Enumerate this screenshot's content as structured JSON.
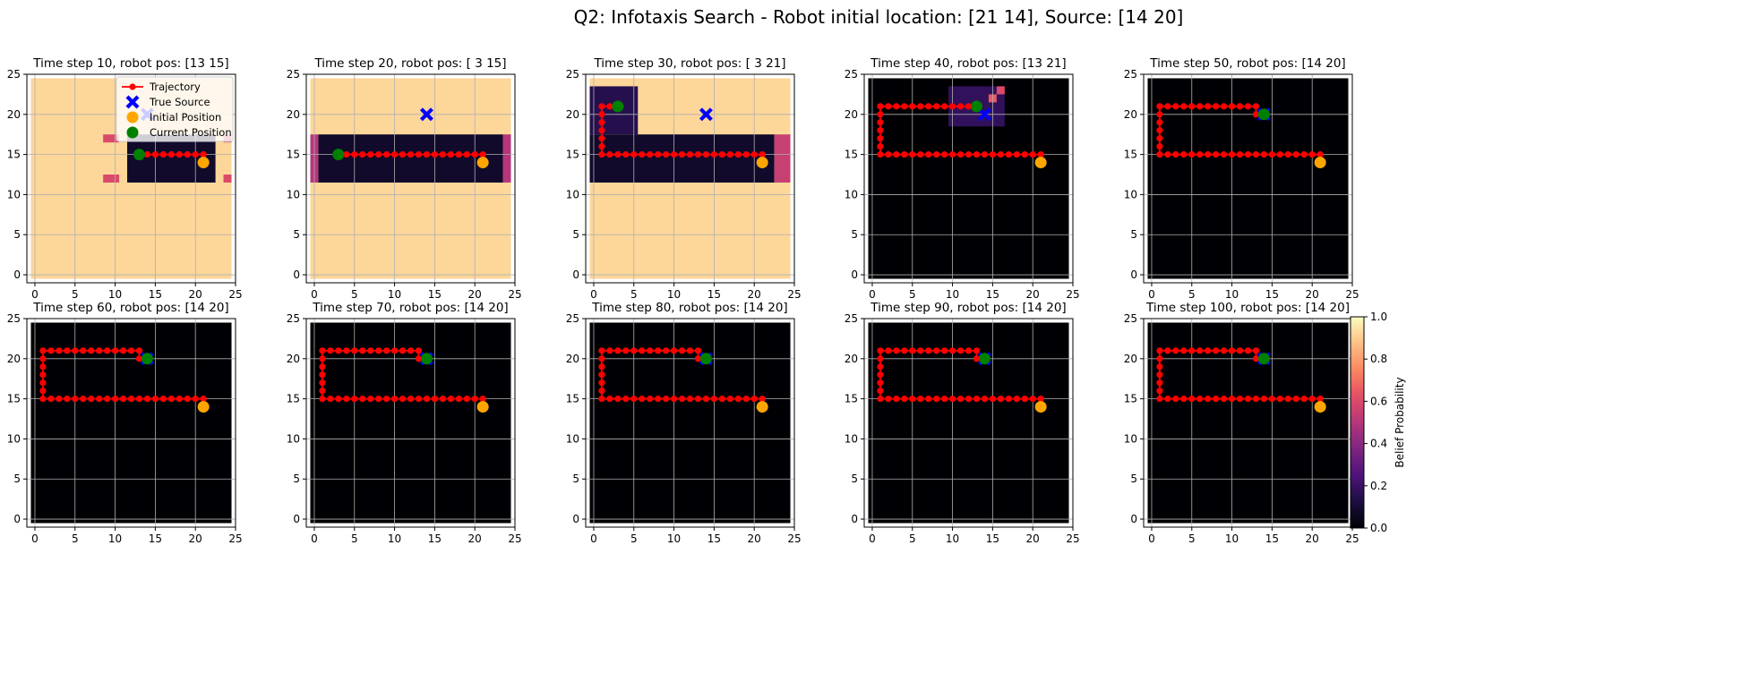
{
  "figure": {
    "suptitle": "Q2: Infotaxis Search - Robot initial location: [21 14], Source: [14 20]"
  },
  "colors": {
    "trajectory": "#ff0000",
    "true_source": "#0000ff",
    "initial_position": "#ffa500",
    "current_position": "#008000",
    "grid": "#b0b0b0",
    "colormap": "magma"
  },
  "icons": {
    "true_source": "x-marker-icon",
    "initial_position": "circle-marker-icon",
    "current_position": "circle-marker-icon",
    "trajectory": "line-with-dot-icon"
  },
  "chart_data": {
    "type": "heatmap",
    "grid_size": 25,
    "xlim": [
      -1,
      25
    ],
    "ylim": [
      -1,
      25
    ],
    "xticks": [
      "0",
      "5",
      "10",
      "15",
      "20",
      "25"
    ],
    "yticks": [
      "0",
      "5",
      "10",
      "15",
      "20",
      "25"
    ],
    "grid": true,
    "true_source": [
      14,
      20
    ],
    "initial_position": [
      21,
      14
    ],
    "legend": {
      "placement": "top-right (first panel)",
      "entries": [
        "Trajectory",
        "True Source",
        "Initial Position",
        "Current Position"
      ]
    },
    "colorbar": {
      "label": "Belief Probability",
      "range": [
        0.0,
        1.0
      ],
      "ticks": [
        "0.0",
        "0.2",
        "0.4",
        "0.6",
        "0.8",
        "1.0"
      ]
    },
    "panels": [
      {
        "title": "Time step 10, robot pos: [13 15]",
        "robot": [
          13,
          15
        ],
        "show_legend": true,
        "background_belief": 0.92,
        "belief_regions": [
          {
            "x0": 12,
            "x1": 23,
            "y0": 12,
            "y1": 18,
            "value": 0.08
          },
          {
            "x0": 9,
            "x1": 11,
            "y0": 12,
            "y1": 13,
            "value": 0.6
          },
          {
            "x0": 24,
            "x1": 25,
            "y0": 12,
            "y1": 13,
            "value": 0.6
          },
          {
            "x0": 9,
            "x1": 11,
            "y0": 17,
            "y1": 18,
            "value": 0.6
          },
          {
            "x0": 24,
            "x1": 25,
            "y0": 17,
            "y1": 18,
            "value": 0.6
          }
        ],
        "trajectory_x": [
          21,
          20,
          19,
          18,
          17,
          16,
          15,
          14,
          13
        ],
        "trajectory_y": [
          15,
          15,
          15,
          15,
          15,
          15,
          15,
          15,
          15
        ]
      },
      {
        "title": "Time step 20, robot pos: [ 3 15]",
        "robot": [
          3,
          15
        ],
        "show_legend": false,
        "background_belief": 0.92,
        "belief_regions": [
          {
            "x0": 1,
            "x1": 24,
            "y0": 12,
            "y1": 18,
            "value": 0.08
          },
          {
            "x0": 0,
            "x1": 1,
            "y0": 12,
            "y1": 18,
            "value": 0.5
          },
          {
            "x0": 24,
            "x1": 25,
            "y0": 12,
            "y1": 18,
            "value": 0.5
          }
        ],
        "trajectory_x": [
          21,
          20,
          19,
          18,
          17,
          16,
          15,
          14,
          13,
          12,
          11,
          10,
          9,
          8,
          7,
          6,
          5,
          4,
          3
        ],
        "trajectory_y": [
          15,
          15,
          15,
          15,
          15,
          15,
          15,
          15,
          15,
          15,
          15,
          15,
          15,
          15,
          15,
          15,
          15,
          15,
          15
        ]
      },
      {
        "title": "Time step 30, robot pos: [ 3 21]",
        "robot": [
          3,
          21
        ],
        "show_legend": false,
        "background_belief": 0.92,
        "belief_regions": [
          {
            "x0": 0,
            "x1": 23,
            "y0": 12,
            "y1": 18,
            "value": 0.08
          },
          {
            "x0": 0,
            "x1": 6,
            "y0": 18,
            "y1": 24,
            "value": 0.15
          },
          {
            "x0": 23,
            "x1": 25,
            "y0": 12,
            "y1": 18,
            "value": 0.55
          }
        ],
        "trajectory_x": [
          21,
          20,
          19,
          18,
          17,
          16,
          15,
          14,
          13,
          12,
          11,
          10,
          9,
          8,
          7,
          6,
          5,
          4,
          3,
          2,
          1,
          1,
          1,
          1,
          1,
          1,
          1,
          2,
          3
        ],
        "trajectory_y": [
          15,
          15,
          15,
          15,
          15,
          15,
          15,
          15,
          15,
          15,
          15,
          15,
          15,
          15,
          15,
          15,
          15,
          15,
          15,
          15,
          15,
          16,
          17,
          18,
          19,
          20,
          21,
          21,
          21
        ]
      },
      {
        "title": "Time step 40, robot pos: [13 21]",
        "robot": [
          13,
          21
        ],
        "show_legend": false,
        "background_belief": 0.0,
        "belief_regions": [
          {
            "x0": 10,
            "x1": 17,
            "y0": 19,
            "y1": 24,
            "value": 0.18
          },
          {
            "x0": 15,
            "x1": 16,
            "y0": 22,
            "y1": 23,
            "value": 0.65
          },
          {
            "x0": 16,
            "x1": 17,
            "y0": 23,
            "y1": 24,
            "value": 0.6
          }
        ],
        "trajectory_x": [
          21,
          20,
          19,
          18,
          17,
          16,
          15,
          14,
          13,
          12,
          11,
          10,
          9,
          8,
          7,
          6,
          5,
          4,
          3,
          2,
          1,
          1,
          1,
          1,
          1,
          1,
          1,
          2,
          3,
          4,
          5,
          6,
          7,
          8,
          9,
          10,
          11,
          12,
          13
        ],
        "trajectory_y": [
          15,
          15,
          15,
          15,
          15,
          15,
          15,
          15,
          15,
          15,
          15,
          15,
          15,
          15,
          15,
          15,
          15,
          15,
          15,
          15,
          15,
          16,
          17,
          18,
          19,
          20,
          21,
          21,
          21,
          21,
          21,
          21,
          21,
          21,
          21,
          21,
          21,
          21,
          21
        ]
      },
      {
        "title": "Time step 50, robot pos: [14 20]",
        "robot": [
          14,
          20
        ],
        "show_legend": false,
        "background_belief": 0.0,
        "belief_regions": [],
        "trajectory_x": [
          21,
          20,
          19,
          18,
          17,
          16,
          15,
          14,
          13,
          12,
          11,
          10,
          9,
          8,
          7,
          6,
          5,
          4,
          3,
          2,
          1,
          1,
          1,
          1,
          1,
          1,
          1,
          2,
          3,
          4,
          5,
          6,
          7,
          8,
          9,
          10,
          11,
          12,
          13,
          13,
          14
        ],
        "trajectory_y": [
          15,
          15,
          15,
          15,
          15,
          15,
          15,
          15,
          15,
          15,
          15,
          15,
          15,
          15,
          15,
          15,
          15,
          15,
          15,
          15,
          15,
          16,
          17,
          18,
          19,
          20,
          21,
          21,
          21,
          21,
          21,
          21,
          21,
          21,
          21,
          21,
          21,
          21,
          21,
          20,
          20
        ]
      },
      {
        "title": "Time step 60, robot pos: [14 20]",
        "robot": [
          14,
          20
        ],
        "show_legend": false,
        "background_belief": 0.0,
        "belief_regions": [],
        "trajectory_x": [
          21,
          20,
          19,
          18,
          17,
          16,
          15,
          14,
          13,
          12,
          11,
          10,
          9,
          8,
          7,
          6,
          5,
          4,
          3,
          2,
          1,
          1,
          1,
          1,
          1,
          1,
          1,
          2,
          3,
          4,
          5,
          6,
          7,
          8,
          9,
          10,
          11,
          12,
          13,
          13,
          14
        ],
        "trajectory_y": [
          15,
          15,
          15,
          15,
          15,
          15,
          15,
          15,
          15,
          15,
          15,
          15,
          15,
          15,
          15,
          15,
          15,
          15,
          15,
          15,
          15,
          16,
          17,
          18,
          19,
          20,
          21,
          21,
          21,
          21,
          21,
          21,
          21,
          21,
          21,
          21,
          21,
          21,
          21,
          20,
          20
        ]
      },
      {
        "title": "Time step 70, robot pos: [14 20]",
        "robot": [
          14,
          20
        ],
        "show_legend": false,
        "background_belief": 0.0,
        "belief_regions": [],
        "trajectory_x": [
          21,
          20,
          19,
          18,
          17,
          16,
          15,
          14,
          13,
          12,
          11,
          10,
          9,
          8,
          7,
          6,
          5,
          4,
          3,
          2,
          1,
          1,
          1,
          1,
          1,
          1,
          1,
          2,
          3,
          4,
          5,
          6,
          7,
          8,
          9,
          10,
          11,
          12,
          13,
          13,
          14
        ],
        "trajectory_y": [
          15,
          15,
          15,
          15,
          15,
          15,
          15,
          15,
          15,
          15,
          15,
          15,
          15,
          15,
          15,
          15,
          15,
          15,
          15,
          15,
          15,
          16,
          17,
          18,
          19,
          20,
          21,
          21,
          21,
          21,
          21,
          21,
          21,
          21,
          21,
          21,
          21,
          21,
          21,
          20,
          20
        ]
      },
      {
        "title": "Time step 80, robot pos: [14 20]",
        "robot": [
          14,
          20
        ],
        "show_legend": false,
        "background_belief": 0.0,
        "belief_regions": [],
        "trajectory_x": [
          21,
          20,
          19,
          18,
          17,
          16,
          15,
          14,
          13,
          12,
          11,
          10,
          9,
          8,
          7,
          6,
          5,
          4,
          3,
          2,
          1,
          1,
          1,
          1,
          1,
          1,
          1,
          2,
          3,
          4,
          5,
          6,
          7,
          8,
          9,
          10,
          11,
          12,
          13,
          13,
          14
        ],
        "trajectory_y": [
          15,
          15,
          15,
          15,
          15,
          15,
          15,
          15,
          15,
          15,
          15,
          15,
          15,
          15,
          15,
          15,
          15,
          15,
          15,
          15,
          15,
          16,
          17,
          18,
          19,
          20,
          21,
          21,
          21,
          21,
          21,
          21,
          21,
          21,
          21,
          21,
          21,
          21,
          21,
          20,
          20
        ]
      },
      {
        "title": "Time step 90, robot pos: [14 20]",
        "robot": [
          14,
          20
        ],
        "show_legend": false,
        "background_belief": 0.0,
        "belief_regions": [],
        "trajectory_x": [
          21,
          20,
          19,
          18,
          17,
          16,
          15,
          14,
          13,
          12,
          11,
          10,
          9,
          8,
          7,
          6,
          5,
          4,
          3,
          2,
          1,
          1,
          1,
          1,
          1,
          1,
          1,
          2,
          3,
          4,
          5,
          6,
          7,
          8,
          9,
          10,
          11,
          12,
          13,
          13,
          14
        ],
        "trajectory_y": [
          15,
          15,
          15,
          15,
          15,
          15,
          15,
          15,
          15,
          15,
          15,
          15,
          15,
          15,
          15,
          15,
          15,
          15,
          15,
          15,
          15,
          16,
          17,
          18,
          19,
          20,
          21,
          21,
          21,
          21,
          21,
          21,
          21,
          21,
          21,
          21,
          21,
          21,
          21,
          20,
          20
        ]
      },
      {
        "title": "Time step 100, robot pos: [14 20]",
        "robot": [
          14,
          20
        ],
        "show_legend": false,
        "background_belief": 0.0,
        "belief_regions": [],
        "trajectory_x": [
          21,
          20,
          19,
          18,
          17,
          16,
          15,
          14,
          13,
          12,
          11,
          10,
          9,
          8,
          7,
          6,
          5,
          4,
          3,
          2,
          1,
          1,
          1,
          1,
          1,
          1,
          1,
          2,
          3,
          4,
          5,
          6,
          7,
          8,
          9,
          10,
          11,
          12,
          13,
          13,
          14
        ],
        "trajectory_y": [
          15,
          15,
          15,
          15,
          15,
          15,
          15,
          15,
          15,
          15,
          15,
          15,
          15,
          15,
          15,
          15,
          15,
          15,
          15,
          15,
          15,
          16,
          17,
          18,
          19,
          20,
          21,
          21,
          21,
          21,
          21,
          21,
          21,
          21,
          21,
          21,
          21,
          21,
          21,
          20,
          20
        ]
      }
    ]
  }
}
